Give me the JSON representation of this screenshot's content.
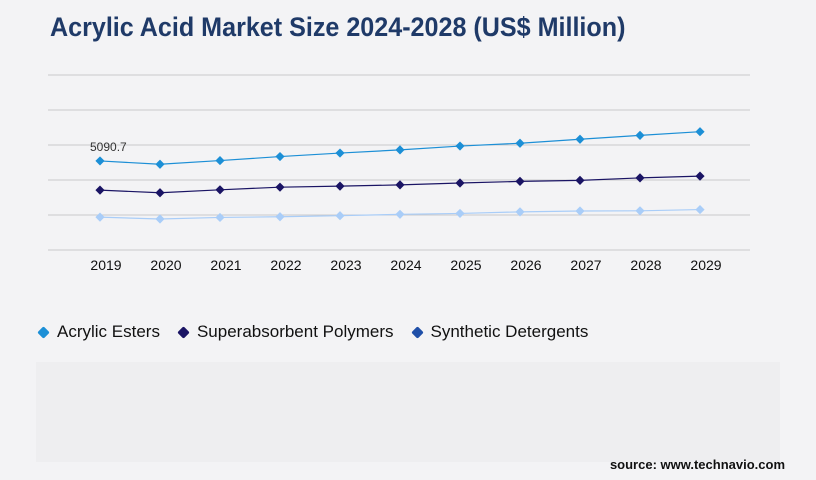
{
  "title": "Acrylic Acid Market Size 2024-2028 (US$ Million)",
  "source": "source: www.technavio.com",
  "chart_data": {
    "type": "line",
    "title": "Acrylic Acid Market Size 2024-2028 (US$ Million)",
    "xlabel": "",
    "ylabel": "",
    "x": [
      "2019",
      "2020",
      "2021",
      "2022",
      "2023",
      "2024",
      "2025",
      "2026",
      "2027",
      "2028",
      "2029"
    ],
    "ylim": [
      0,
      10000
    ],
    "grid": true,
    "legend_position": "bottom-left",
    "annotation": "5090.7",
    "series": [
      {
        "name": "Acrylic Esters",
        "color": "#1c8fd6",
        "values": [
          5090.7,
          4900,
          5110,
          5340,
          5540,
          5720,
          5940,
          6100,
          6330,
          6550,
          6760
        ]
      },
      {
        "name": "Superabsorbent Polymers",
        "color": "#1a1464",
        "values": [
          3420,
          3270,
          3440,
          3590,
          3650,
          3720,
          3830,
          3920,
          3980,
          4120,
          4220
        ]
      },
      {
        "name": "Synthetic Detergents",
        "color": "#a9cdf8",
        "values": [
          1880,
          1770,
          1860,
          1900,
          1960,
          2040,
          2090,
          2180,
          2230,
          2240,
          2310
        ]
      }
    ]
  },
  "legend": [
    {
      "label": "Acrylic Esters",
      "color": "#1c8fd6",
      "icon": "diamond"
    },
    {
      "label": "Superabsorbent Polymers",
      "color": "#1a1464",
      "icon": "diamond"
    },
    {
      "label": "Synthetic Detergents",
      "color": "#1f4fa8",
      "icon": "diamond"
    }
  ]
}
